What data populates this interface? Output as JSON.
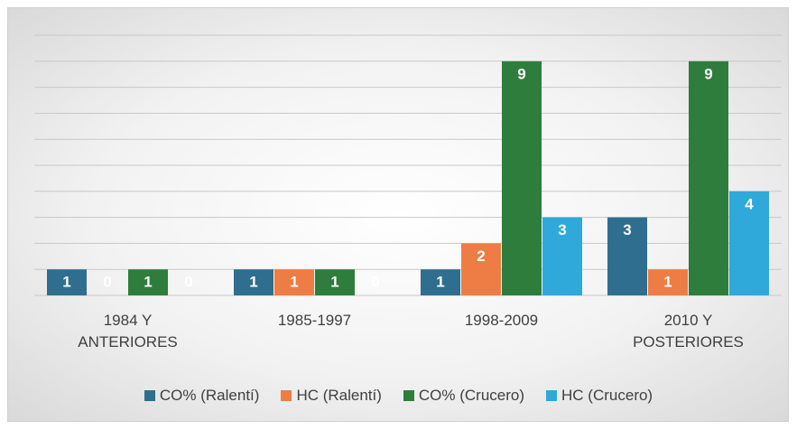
{
  "chart_data": {
    "type": "bar",
    "categories": [
      "1984 Y ANTERIORES",
      "1985-1997",
      "1998-2009",
      "2010 Y POSTERIORES"
    ],
    "series": [
      {
        "name": "CO% (Ralentí)",
        "color": "#2f6e8e",
        "values": [
          1,
          1,
          1,
          3
        ]
      },
      {
        "name": "HC (Ralentí)",
        "color": "#ed7d45",
        "values": [
          0,
          1,
          2,
          1
        ]
      },
      {
        "name": "CO% (Crucero)",
        "color": "#2e7d3c",
        "values": [
          1,
          1,
          9,
          9
        ]
      },
      {
        "name": "HC (Crucero)",
        "color": "#2ea9da",
        "values": [
          0,
          0,
          3,
          4
        ]
      }
    ],
    "ylim": [
      0,
      10
    ],
    "yticks": [
      0,
      1,
      2,
      3,
      4,
      5,
      6,
      7,
      8,
      9,
      10
    ],
    "grid": true,
    "legend": "bottom"
  }
}
